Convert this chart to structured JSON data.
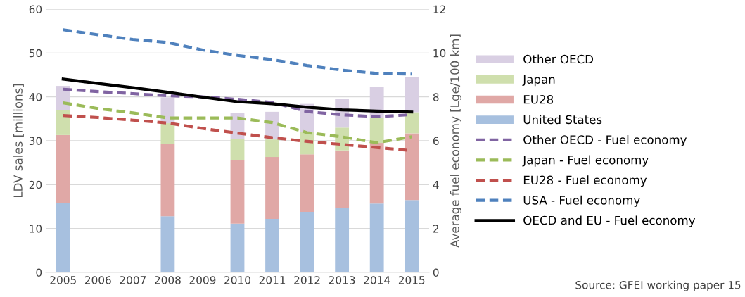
{
  "chart_data": {
    "type": "bar",
    "stacked": true,
    "categories": [
      "2005",
      "2006",
      "2007",
      "2008",
      "2009",
      "2010",
      "2011",
      "2012",
      "2013",
      "2014",
      "2015"
    ],
    "ylabel": "LDV sales [millions]",
    "y2label": "Average fuel economy [Lge/100 km]",
    "ylim": [
      0,
      60
    ],
    "yticks": [
      0,
      10,
      20,
      30,
      40,
      50,
      60
    ],
    "y2lim": [
      0,
      12
    ],
    "y2ticks": [
      0,
      2,
      4,
      6,
      8,
      10,
      12
    ],
    "grid": "y",
    "legend": "right",
    "marker": "none",
    "annotations": [
      "Source: GFEI working paper 15"
    ],
    "series": [
      {
        "name": "United States",
        "color": "#a7c0df",
        "values": [
          15.9,
          null,
          null,
          12.8,
          null,
          11.1,
          12.2,
          13.8,
          14.7,
          15.7,
          16.5
        ]
      },
      {
        "name": "EU28",
        "color": "#e0a8a6",
        "values": [
          15.4,
          null,
          null,
          16.5,
          null,
          14.5,
          14.1,
          13.1,
          13.1,
          13.8,
          15.2
        ]
      },
      {
        "name": "Japan",
        "color": "#cfdfad",
        "values": [
          5.6,
          null,
          null,
          4.7,
          null,
          4.8,
          4.0,
          5.1,
          5.2,
          5.7,
          4.8
        ]
      },
      {
        "name": "Other OECD",
        "color": "#d9cfe3",
        "values": [
          5.6,
          null,
          null,
          5.9,
          null,
          5.9,
          6.3,
          6.4,
          6.6,
          7.1,
          8.1
        ]
      },
      {
        "name": "Other OECD - Fuel economy",
        "type": "line",
        "axis": "y2",
        "line_style": "dashed",
        "color": "#8064a2",
        "values": [
          8.35,
          8.24,
          8.15,
          8.05,
          8.0,
          7.89,
          7.75,
          7.33,
          7.18,
          7.1,
          7.19
        ]
      },
      {
        "name": "Japan - Fuel economy",
        "type": "line",
        "axis": "y2",
        "line_style": "dashed",
        "color": "#9bbb59",
        "values": [
          7.73,
          7.47,
          7.27,
          7.04,
          7.04,
          7.04,
          6.83,
          6.37,
          6.18,
          5.91,
          6.18
        ]
      },
      {
        "name": "EU28 - Fuel economy",
        "type": "line",
        "axis": "y2",
        "line_style": "dashed",
        "color": "#c0504d",
        "values": [
          7.15,
          7.06,
          6.94,
          6.81,
          6.56,
          6.35,
          6.14,
          5.97,
          5.83,
          5.69,
          5.55
        ]
      },
      {
        "name": "USA - Fuel economy",
        "type": "line",
        "axis": "y2",
        "line_style": "dashed",
        "color": "#4f81bd",
        "values": [
          11.06,
          10.83,
          10.62,
          10.48,
          10.14,
          9.89,
          9.7,
          9.43,
          9.22,
          9.07,
          9.04
        ]
      },
      {
        "name": "OECD and EU - Fuel economy",
        "type": "line",
        "axis": "y2",
        "line_style": "solid",
        "color": "#000000",
        "values": [
          8.81,
          8.61,
          8.42,
          8.21,
          7.99,
          7.78,
          7.69,
          7.53,
          7.41,
          7.35,
          7.31
        ]
      }
    ]
  }
}
